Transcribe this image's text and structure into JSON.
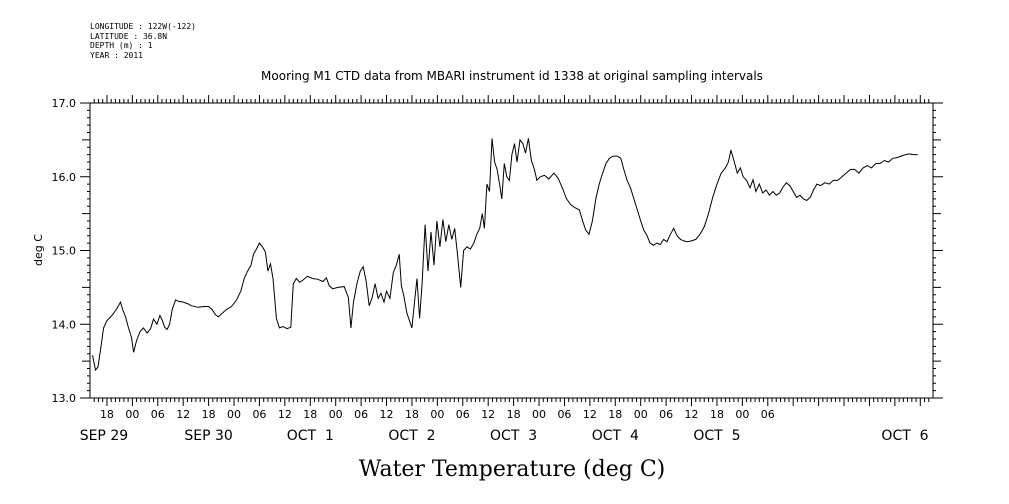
{
  "metadata": [
    "LONGITUDE : 122W(-122)",
    "LATITUDE : 36.8N",
    "DEPTH (m) : 1",
    "YEAR : 2011"
  ],
  "chart_data": {
    "type": "line",
    "title": "Mooring M1 CTD data from MBARI instrument id 1338 at original sampling intervals",
    "xlabel": "Water Temperature (deg C)",
    "ylabel": "deg C",
    "ylim": [
      13.0,
      17.0
    ],
    "xlim_hours": [
      -10,
      189
    ],
    "y_ticks": [
      "13.0",
      "14.0",
      "15.0",
      "16.0",
      "17.0"
    ],
    "x_hour_labels": [
      "18",
      "00",
      "06",
      "12",
      "18",
      "00",
      "06",
      "12",
      "18",
      "00",
      "06",
      "12",
      "18",
      "00",
      "06",
      "12",
      "18",
      "00",
      "06",
      "12",
      "18",
      "00",
      "06",
      "12",
      "18",
      "00",
      "06"
    ],
    "date_labels": [
      "SEP 29",
      "SEP 30",
      "OCT  1",
      "OCT  2",
      "OCT  3",
      "OCT  4",
      "OCT  5",
      "OCT  6"
    ],
    "grid": false,
    "series": [
      {
        "points": [
          [
            -9.4,
            13.58
          ],
          [
            -8.7,
            13.38
          ],
          [
            -8.1,
            13.42
          ],
          [
            -7.4,
            13.7
          ],
          [
            -6.8,
            13.95
          ],
          [
            -6.0,
            14.05
          ],
          [
            -4.8,
            14.12
          ],
          [
            -3.8,
            14.2
          ],
          [
            -2.8,
            14.3
          ],
          [
            -2.3,
            14.2
          ],
          [
            -1.6,
            14.1
          ],
          [
            -1.0,
            13.97
          ],
          [
            -0.2,
            13.82
          ],
          [
            0.3,
            13.62
          ],
          [
            1.0,
            13.78
          ],
          [
            1.8,
            13.9
          ],
          [
            2.6,
            13.95
          ],
          [
            3.5,
            13.88
          ],
          [
            4.3,
            13.94
          ],
          [
            5.0,
            14.07
          ],
          [
            5.8,
            14.0
          ],
          [
            6.5,
            14.12
          ],
          [
            7.1,
            14.05
          ],
          [
            7.6,
            13.96
          ],
          [
            8.2,
            13.93
          ],
          [
            8.8,
            14.0
          ],
          [
            9.4,
            14.2
          ],
          [
            10.2,
            14.33
          ],
          [
            11.0,
            14.31
          ],
          [
            12.0,
            14.3
          ],
          [
            13.0,
            14.28
          ],
          [
            14.0,
            14.25
          ],
          [
            15.5,
            14.23
          ],
          [
            17.0,
            14.24
          ],
          [
            18.0,
            14.24
          ],
          [
            18.8,
            14.2
          ],
          [
            19.6,
            14.13
          ],
          [
            20.3,
            14.1
          ],
          [
            21.2,
            14.15
          ],
          [
            22.2,
            14.2
          ],
          [
            23.4,
            14.24
          ],
          [
            24.6,
            14.33
          ],
          [
            25.6,
            14.45
          ],
          [
            26.4,
            14.62
          ],
          [
            27.2,
            14.72
          ],
          [
            28.0,
            14.8
          ],
          [
            28.6,
            14.95
          ],
          [
            29.3,
            15.02
          ],
          [
            30.0,
            15.1
          ],
          [
            30.7,
            15.05
          ],
          [
            31.4,
            14.98
          ],
          [
            32.0,
            14.72
          ],
          [
            32.6,
            14.82
          ],
          [
            33.2,
            14.62
          ],
          [
            34.0,
            14.08
          ],
          [
            34.7,
            13.95
          ],
          [
            35.6,
            13.97
          ],
          [
            36.5,
            13.94
          ],
          [
            37.4,
            13.96
          ],
          [
            38.0,
            14.55
          ],
          [
            38.7,
            14.62
          ],
          [
            39.5,
            14.57
          ],
          [
            40.3,
            14.6
          ],
          [
            41.3,
            14.65
          ],
          [
            42.5,
            14.62
          ],
          [
            43.8,
            14.61
          ],
          [
            45.0,
            14.58
          ],
          [
            45.8,
            14.63
          ],
          [
            46.5,
            14.52
          ],
          [
            47.3,
            14.48
          ],
          [
            48.5,
            14.5
          ],
          [
            50.0,
            14.51
          ],
          [
            51.0,
            14.36
          ],
          [
            51.6,
            13.95
          ],
          [
            52.2,
            14.3
          ],
          [
            53.0,
            14.55
          ],
          [
            53.8,
            14.72
          ],
          [
            54.5,
            14.78
          ],
          [
            55.2,
            14.58
          ],
          [
            55.9,
            14.25
          ],
          [
            56.6,
            14.36
          ],
          [
            57.3,
            14.55
          ],
          [
            58.0,
            14.35
          ],
          [
            58.7,
            14.42
          ],
          [
            59.4,
            14.3
          ],
          [
            60.0,
            14.45
          ],
          [
            60.8,
            14.35
          ],
          [
            61.6,
            14.7
          ],
          [
            62.3,
            14.8
          ],
          [
            63.0,
            14.95
          ],
          [
            63.5,
            14.52
          ],
          [
            64.1,
            14.38
          ],
          [
            64.8,
            14.15
          ],
          [
            65.4,
            14.05
          ],
          [
            66.0,
            13.95
          ],
          [
            66.6,
            14.3
          ],
          [
            67.2,
            14.62
          ],
          [
            67.8,
            14.08
          ],
          [
            68.4,
            14.55
          ],
          [
            69.1,
            15.35
          ],
          [
            69.8,
            14.72
          ],
          [
            70.5,
            15.25
          ],
          [
            71.2,
            14.8
          ],
          [
            71.9,
            15.4
          ],
          [
            72.6,
            15.05
          ],
          [
            73.3,
            15.42
          ],
          [
            74.0,
            15.12
          ],
          [
            74.7,
            15.35
          ],
          [
            75.4,
            15.15
          ],
          [
            76.1,
            15.3
          ],
          [
            76.8,
            14.92
          ],
          [
            77.5,
            14.5
          ],
          [
            78.2,
            15.0
          ],
          [
            79.0,
            15.05
          ],
          [
            79.8,
            15.02
          ],
          [
            80.6,
            15.1
          ],
          [
            81.3,
            15.22
          ],
          [
            82.0,
            15.3
          ],
          [
            82.6,
            15.5
          ],
          [
            83.1,
            15.3
          ],
          [
            83.7,
            15.9
          ],
          [
            84.3,
            15.8
          ],
          [
            84.9,
            16.52
          ],
          [
            85.5,
            16.2
          ],
          [
            86.1,
            16.1
          ],
          [
            86.7,
            15.9
          ],
          [
            87.2,
            15.7
          ],
          [
            87.8,
            16.18
          ],
          [
            88.4,
            16.0
          ],
          [
            89.0,
            15.95
          ],
          [
            89.6,
            16.3
          ],
          [
            90.2,
            16.45
          ],
          [
            90.8,
            16.2
          ],
          [
            91.5,
            16.5
          ],
          [
            92.2,
            16.45
          ],
          [
            92.8,
            16.32
          ],
          [
            93.5,
            16.52
          ],
          [
            94.2,
            16.22
          ],
          [
            94.9,
            16.1
          ],
          [
            95.5,
            15.95
          ],
          [
            96.3,
            16.0
          ],
          [
            97.3,
            16.02
          ],
          [
            98.3,
            15.97
          ],
          [
            99.5,
            16.05
          ],
          [
            100.5,
            15.98
          ],
          [
            101.5,
            15.85
          ],
          [
            102.5,
            15.7
          ],
          [
            103.5,
            15.62
          ],
          [
            104.5,
            15.58
          ],
          [
            105.5,
            15.55
          ],
          [
            106.3,
            15.4
          ],
          [
            107.0,
            15.28
          ],
          [
            107.8,
            15.22
          ],
          [
            108.6,
            15.4
          ],
          [
            109.4,
            15.7
          ],
          [
            110.2,
            15.9
          ],
          [
            111.0,
            16.05
          ],
          [
            111.8,
            16.18
          ],
          [
            112.6,
            16.25
          ],
          [
            113.5,
            16.28
          ],
          [
            114.5,
            16.28
          ],
          [
            115.3,
            16.25
          ],
          [
            116.0,
            16.1
          ],
          [
            116.8,
            15.95
          ],
          [
            117.6,
            15.85
          ],
          [
            118.4,
            15.7
          ],
          [
            119.2,
            15.55
          ],
          [
            120.0,
            15.4
          ],
          [
            120.7,
            15.28
          ],
          [
            121.5,
            15.2
          ],
          [
            122.2,
            15.1
          ],
          [
            123.0,
            15.07
          ],
          [
            123.8,
            15.1
          ],
          [
            124.6,
            15.08
          ],
          [
            125.4,
            15.15
          ],
          [
            126.2,
            15.12
          ],
          [
            127.0,
            15.22
          ],
          [
            127.8,
            15.3
          ],
          [
            128.6,
            15.2
          ],
          [
            129.4,
            15.15
          ],
          [
            130.2,
            15.13
          ],
          [
            131.0,
            15.12
          ],
          [
            132.0,
            15.13
          ],
          [
            133.0,
            15.15
          ],
          [
            134.0,
            15.22
          ],
          [
            135.0,
            15.32
          ],
          [
            136.0,
            15.5
          ],
          [
            137.0,
            15.72
          ],
          [
            138.0,
            15.9
          ],
          [
            139.0,
            16.05
          ],
          [
            140.0,
            16.12
          ],
          [
            140.7,
            16.2
          ],
          [
            141.3,
            16.36
          ],
          [
            142.0,
            16.22
          ],
          [
            142.8,
            16.05
          ],
          [
            143.5,
            16.12
          ],
          [
            144.2,
            16.0
          ],
          [
            145.0,
            15.95
          ],
          [
            145.8,
            15.85
          ],
          [
            146.5,
            15.96
          ],
          [
            147.2,
            15.8
          ],
          [
            148.0,
            15.9
          ],
          [
            148.8,
            15.78
          ],
          [
            149.6,
            15.82
          ],
          [
            150.4,
            15.75
          ],
          [
            151.2,
            15.8
          ],
          [
            152.0,
            15.75
          ],
          [
            152.8,
            15.78
          ],
          [
            153.6,
            15.86
          ],
          [
            154.4,
            15.92
          ],
          [
            155.2,
            15.88
          ],
          [
            156.0,
            15.8
          ],
          [
            156.8,
            15.72
          ],
          [
            157.6,
            15.75
          ],
          [
            158.4,
            15.7
          ],
          [
            159.2,
            15.68
          ],
          [
            160.0,
            15.72
          ],
          [
            160.8,
            15.82
          ],
          [
            161.6,
            15.9
          ],
          [
            162.5,
            15.88
          ],
          [
            163.5,
            15.92
          ],
          [
            164.5,
            15.9
          ],
          [
            165.5,
            15.95
          ],
          [
            166.5,
            15.95
          ],
          [
            167.5,
            16.0
          ],
          [
            168.5,
            16.05
          ],
          [
            169.5,
            16.1
          ],
          [
            170.5,
            16.1
          ],
          [
            171.5,
            16.05
          ],
          [
            172.5,
            16.12
          ],
          [
            173.5,
            16.15
          ],
          [
            174.5,
            16.12
          ],
          [
            175.5,
            16.18
          ],
          [
            176.5,
            16.18
          ],
          [
            177.5,
            16.22
          ],
          [
            178.5,
            16.2
          ],
          [
            179.5,
            16.25
          ],
          [
            180.5,
            16.26
          ],
          [
            181.5,
            16.28
          ],
          [
            182.5,
            16.3
          ],
          [
            183.5,
            16.31
          ],
          [
            184.5,
            16.3
          ],
          [
            185.4,
            16.3
          ]
        ]
      }
    ]
  }
}
